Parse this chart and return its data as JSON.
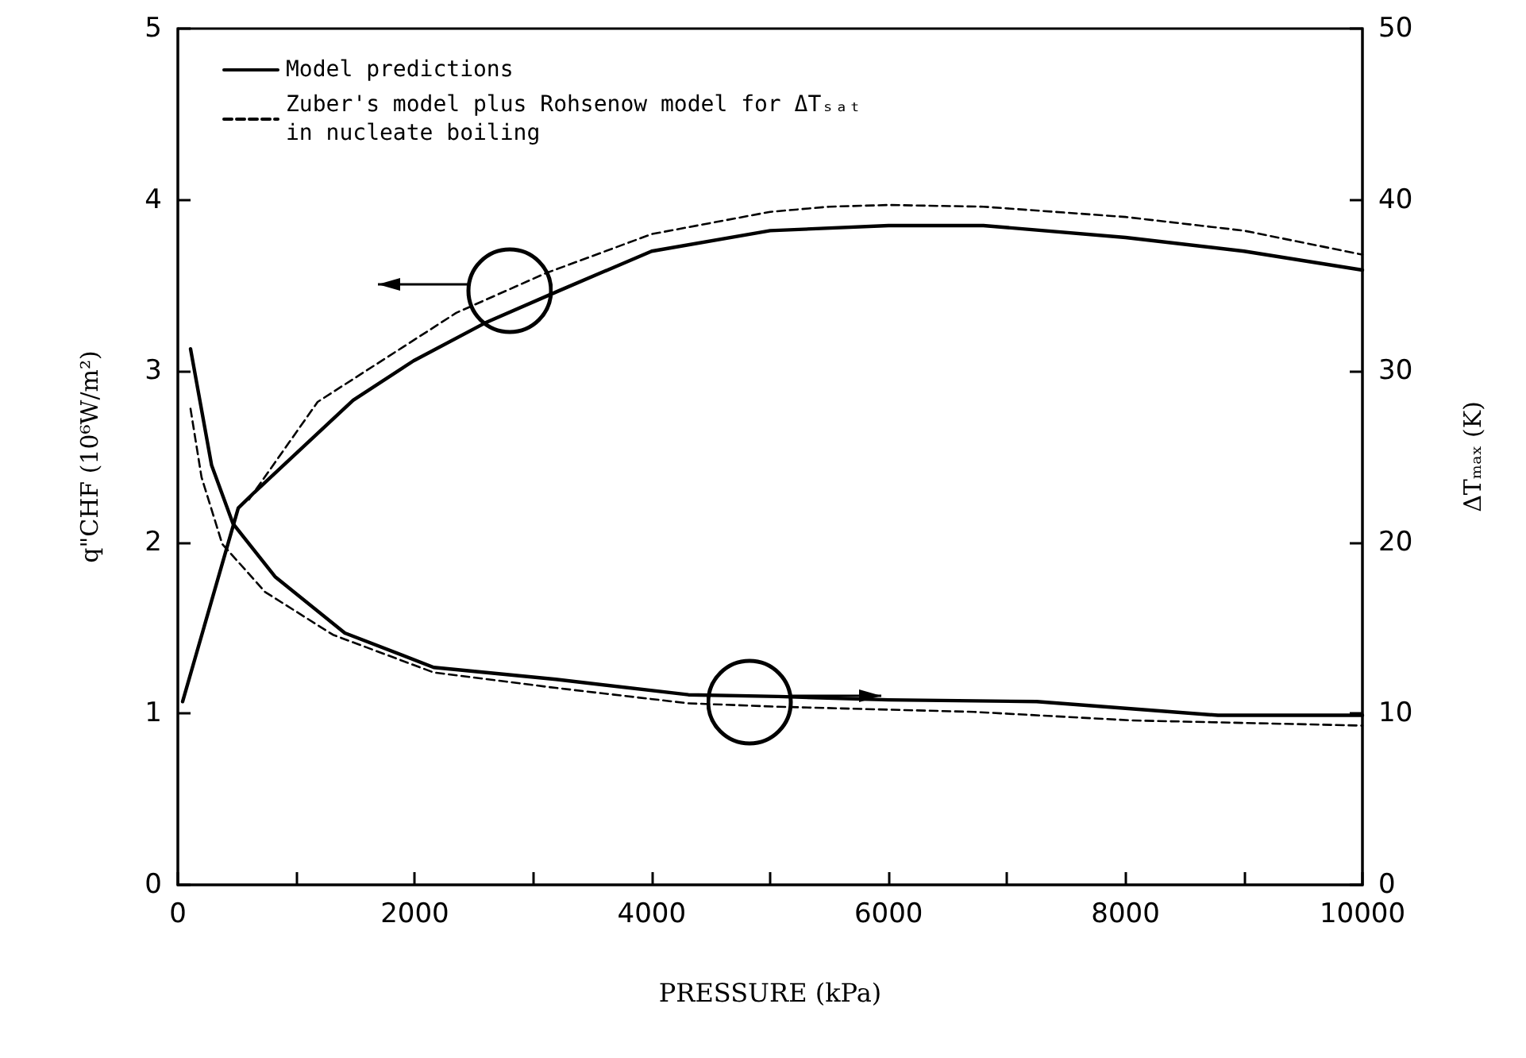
{
  "chart_data": {
    "type": "line",
    "xlabel": "PRESSURE (kPa)",
    "ylabel": "q\"CHF (10⁶W/m²)",
    "y2label": "ΔTₘₐₓ (K)",
    "xlim": [
      0,
      10000
    ],
    "xticks": [
      0,
      {
        "value": 1000,
        "label": null
      },
      2000,
      {
        "value": 3000,
        "label": null
      },
      4000,
      {
        "value": 5000,
        "label": null
      },
      6000,
      {
        "value": 7000,
        "label": null
      },
      8000,
      {
        "value": 9000,
        "label": null
      },
      10000
    ],
    "ylim": [
      0,
      5
    ],
    "yticks": [
      0,
      1,
      2,
      3,
      4,
      5
    ],
    "y2lim": [
      0,
      50
    ],
    "y2ticks": [
      0,
      10,
      20,
      30,
      40,
      50
    ],
    "legend": "top left",
    "grid": false,
    "marker": "none",
    "series": [
      {
        "name": "Model predictions",
        "color": "#000000",
        "line_style": "solid",
        "x": [
          40,
          510,
          643,
          1480,
          1990,
          2590,
          3220,
          4000,
          5000,
          6000,
          6800,
          8000,
          9000,
          10000
        ],
        "values": [
          1.07,
          2.2,
          2.29,
          2.83,
          3.06,
          3.28,
          3.47,
          3.7,
          3.82,
          3.85,
          3.85,
          3.78,
          3.7,
          3.59
        ]
      },
      {
        "name": "Zuber's model plus Rohsenow model for ΔTₛₐₜ in nucleate boiling",
        "color": "#000000",
        "line_style": "dashed",
        "x": [
          600,
          1180,
          2350,
          3100,
          4000,
          5000,
          5500,
          6000,
          6800,
          8000,
          9000,
          10000
        ],
        "values": [
          2.25,
          2.82,
          3.34,
          3.57,
          3.8,
          3.93,
          3.96,
          3.97,
          3.96,
          3.9,
          3.82,
          3.68
        ]
      },
      {
        "color": "#000000",
        "line_style": "solid",
        "axis": "y2",
        "x": [
          107,
          285,
          465,
          820,
          1410,
          2160,
          3190,
          4310,
          5070,
          6000,
          7250,
          8780,
          10000
        ],
        "values": [
          31.3,
          24.5,
          21.1,
          18,
          14.7,
          12.7,
          12,
          11.1,
          11,
          10.8,
          10.7,
          9.9,
          9.9
        ]
      },
      {
        "color": "#000000",
        "line_style": "dashed",
        "axis": "y2",
        "x": [
          107,
          200,
          375,
          737,
          1310,
          2160,
          3190,
          4310,
          5070,
          6720,
          8060,
          10000
        ],
        "values": [
          27.8,
          23.8,
          19.9,
          17.1,
          14.6,
          12.4,
          11.5,
          10.6,
          10.4,
          10.1,
          9.6,
          9.3
        ]
      }
    ]
  }
}
